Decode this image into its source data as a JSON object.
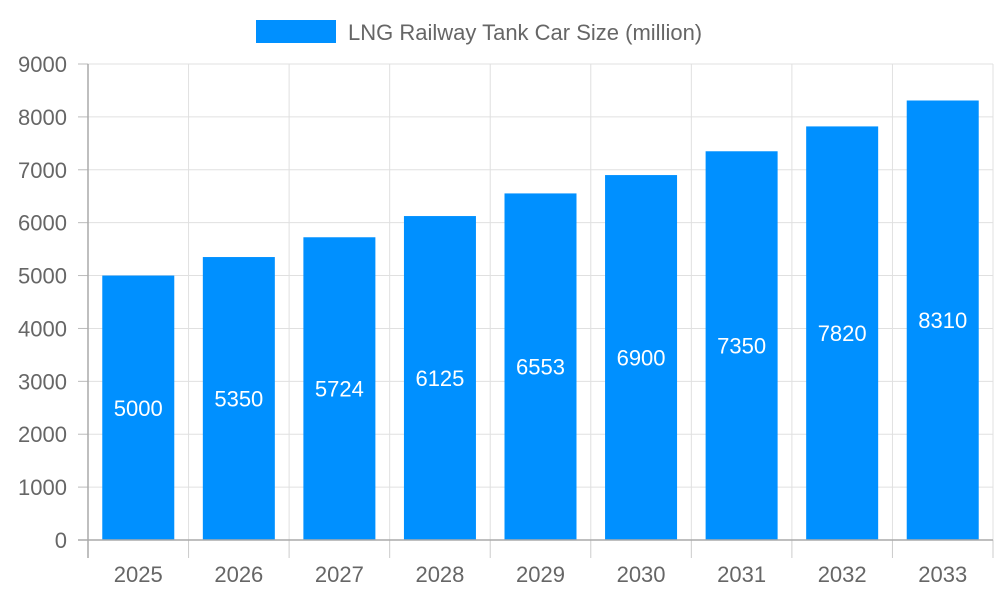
{
  "chart_data": {
    "type": "bar",
    "categories": [
      "2025",
      "2026",
      "2027",
      "2028",
      "2029",
      "2030",
      "2031",
      "2032",
      "2033"
    ],
    "series": [
      {
        "name": "LNG Railway Tank Car Size (million)",
        "values": [
          5000,
          5350,
          5724,
          6125,
          6553,
          6900,
          7350,
          7820,
          8310
        ],
        "color": "#0090FF"
      }
    ],
    "xlabel": "",
    "ylabel": "",
    "ylim": [
      0,
      9000
    ],
    "yticks": [
      0,
      1000,
      2000,
      3000,
      4000,
      5000,
      6000,
      7000,
      8000,
      9000
    ],
    "grid": true,
    "legend": "top-center",
    "data_labels": true
  }
}
